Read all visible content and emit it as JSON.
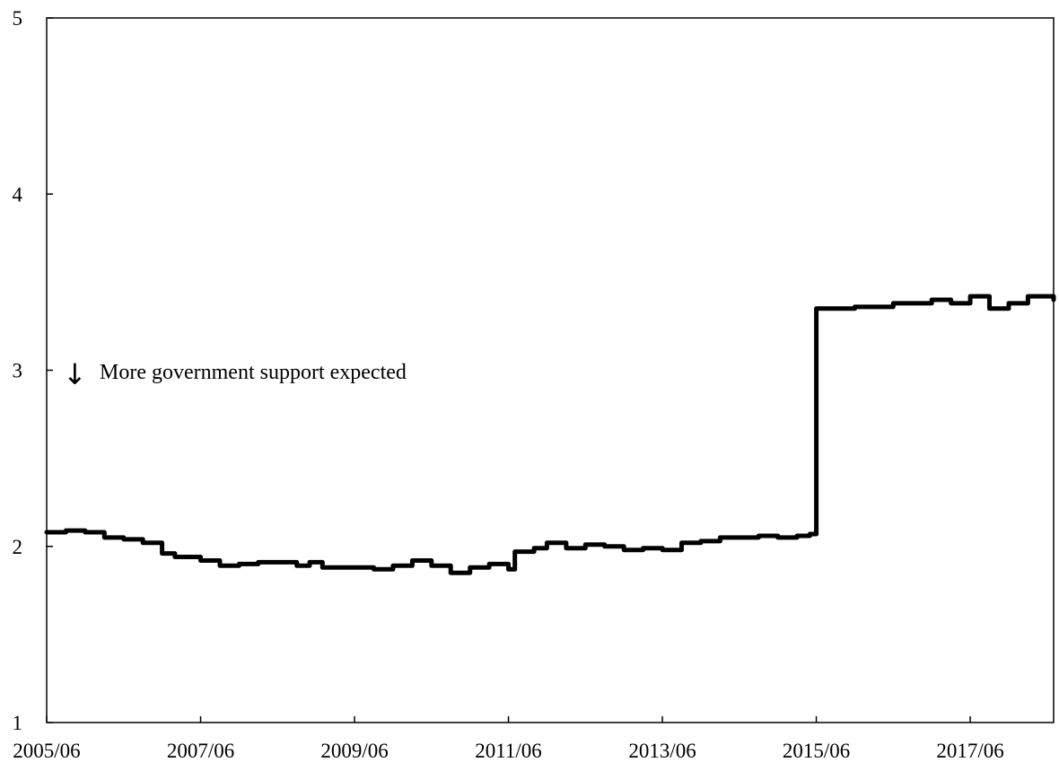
{
  "chart_data": {
    "type": "line",
    "title": "",
    "xlabel": "",
    "ylabel": "",
    "grid": false,
    "legend": "none",
    "xlim": [
      "2005-06",
      "2018-07"
    ],
    "ylim": [
      1,
      5
    ],
    "x_ticks": [
      "2005/06",
      "2007/06",
      "2009/06",
      "2011/06",
      "2013/06",
      "2015/06",
      "2017/06"
    ],
    "y_ticks": [
      "1",
      "2",
      "3",
      "4",
      "5"
    ],
    "annotation": {
      "arrow": "↓",
      "text": "More government support expected"
    },
    "line_color": "#000000",
    "series": [
      {
        "x": [
          "2005-06",
          "2005-09",
          "2005-12",
          "2006-03",
          "2006-06",
          "2006-09",
          "2006-12",
          "2007-02",
          "2007-06",
          "2007-09",
          "2007-12",
          "2008-03",
          "2008-06",
          "2008-09",
          "2008-11",
          "2009-01",
          "2009-03",
          "2009-06",
          "2009-09",
          "2009-12",
          "2010-03",
          "2010-06",
          "2010-09",
          "2010-12",
          "2011-03",
          "2011-05",
          "2011-06",
          "2011-07",
          "2011-08",
          "2011-10",
          "2011-12",
          "2012-03",
          "2012-06",
          "2012-09",
          "2012-12",
          "2013-03",
          "2013-06",
          "2013-09",
          "2013-12",
          "2014-03",
          "2014-06",
          "2014-09",
          "2014-12",
          "2015-03",
          "2015-05",
          "2015-06",
          "2015-07",
          "2015-09",
          "2015-12",
          "2016-03",
          "2016-06",
          "2016-09",
          "2016-12",
          "2017-03",
          "2017-06",
          "2017-09",
          "2017-12",
          "2018-03",
          "2018-07"
        ],
        "y": [
          2.08,
          2.09,
          2.08,
          2.05,
          2.04,
          2.02,
          1.96,
          1.94,
          1.92,
          1.89,
          1.9,
          1.91,
          1.91,
          1.89,
          1.91,
          1.88,
          1.88,
          1.88,
          1.87,
          1.89,
          1.92,
          1.89,
          1.85,
          1.88,
          1.9,
          1.9,
          1.87,
          1.97,
          1.97,
          1.99,
          2.02,
          1.99,
          2.01,
          2.0,
          1.98,
          1.99,
          1.98,
          2.02,
          2.03,
          2.05,
          2.05,
          2.06,
          2.05,
          2.06,
          2.07,
          3.35,
          3.35,
          3.35,
          3.36,
          3.36,
          3.38,
          3.38,
          3.4,
          3.38,
          3.42,
          3.35,
          3.38,
          3.42,
          3.4
        ]
      }
    ]
  }
}
